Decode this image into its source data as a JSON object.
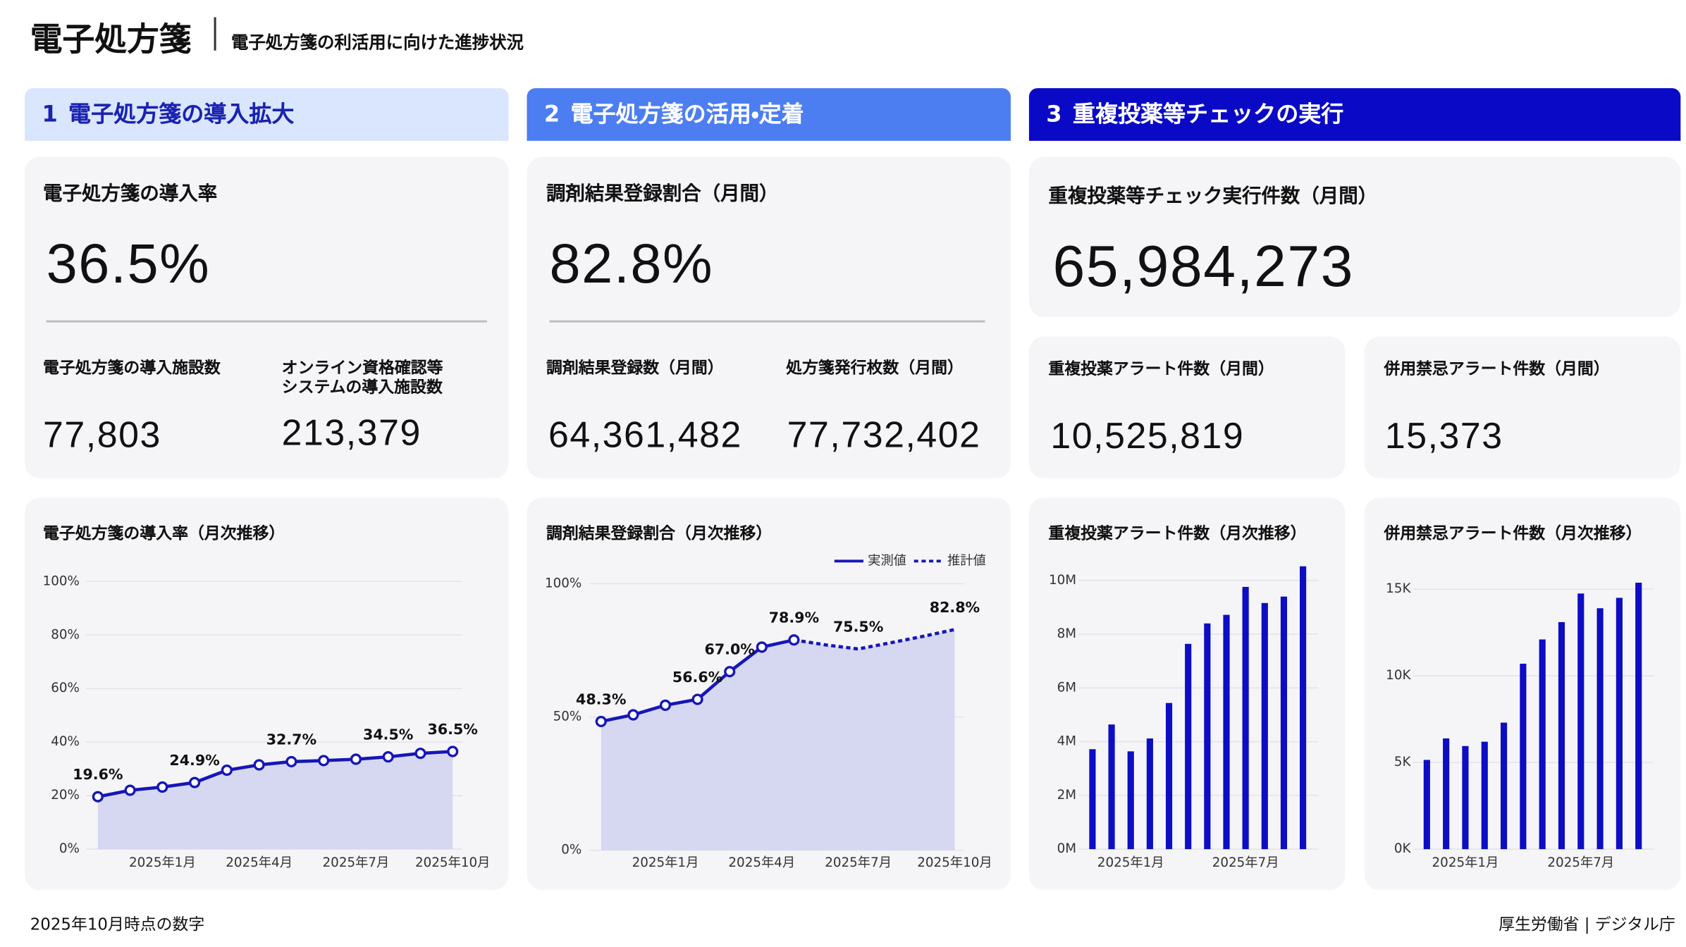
{
  "header": {
    "title": "電子処方箋",
    "subtitle": "電子処方箋の利活用に向けた進捗状況"
  },
  "sections": [
    {
      "number": "1",
      "title": "電子処方箋の導入拡大"
    },
    {
      "number": "2",
      "title": "電子処方箋の活用・定着"
    },
    {
      "number": "3",
      "title": "重複投薬等チェックの実行"
    }
  ],
  "kpis": [
    {
      "title": "電子処方箋の導入率",
      "value": "36.5%",
      "items": [
        {
          "label": "電子処方箋の導入施設数",
          "value": "77,803"
        },
        {
          "label": "オンライン資格確認等\nシステムの導入施設数",
          "value": "213,379"
        }
      ]
    },
    {
      "title": "調剤結果登録割合（月間）",
      "value": "82.8%",
      "items": [
        {
          "label": "調剤結果登録数（月間）",
          "value": "64,361,482"
        },
        {
          "label": "処方箋発行枚数（月間）",
          "value": "77,732,402"
        }
      ]
    },
    {
      "title": "重複投薬等チェック実行件数（月間）",
      "value": "65,984,273",
      "items": [
        {
          "label": "重複投薬アラート件数（月間）",
          "value": "10,525,819"
        },
        {
          "label": "併用禁忌アラート件数（月間）",
          "value": "15,373"
        }
      ]
    }
  ],
  "chart_data": [
    {
      "type": "line",
      "title": "電子処方箋の導入率（月次推移）",
      "categories": [
        null,
        null,
        "2025年1月",
        null,
        null,
        "2025年4月",
        null,
        null,
        "2025年7月",
        null,
        null,
        "2025年10月"
      ],
      "values": [
        19.6,
        22.0,
        23.2,
        24.9,
        29.5,
        31.5,
        32.7,
        33.1,
        33.6,
        34.5,
        35.8,
        36.5
      ],
      "value_labels": [
        "19.6%",
        null,
        null,
        "24.9%",
        null,
        null,
        "32.7%",
        null,
        null,
        "34.5%",
        null,
        "36.5%"
      ],
      "color": "#1616b8",
      "area_color": "#d3d5f1",
      "markers": true,
      "ylim": [
        0,
        100
      ],
      "yticks": [
        {
          "value": 0,
          "label": "0%"
        },
        {
          "value": 20,
          "label": "20%"
        },
        {
          "value": 40,
          "label": "40%"
        },
        {
          "value": 60,
          "label": "60%"
        },
        {
          "value": 80,
          "label": "80%"
        },
        {
          "value": 100,
          "label": "100%"
        }
      ],
      "grid": true
    },
    {
      "type": "line",
      "title": "調剤結果登録割合（月次推移）",
      "categories": [
        null,
        null,
        "2025年1月",
        null,
        null,
        "2025年4月",
        null,
        null,
        "2025年7月",
        null,
        null,
        "2025年10月"
      ],
      "series": [
        {
          "name": "実測値",
          "color": "#1616b8",
          "line_style": "solid",
          "markers": true,
          "values": [
            48.3,
            50.8,
            54.4,
            56.6,
            67.0,
            76.2,
            78.9,
            null,
            null,
            null,
            null,
            null
          ],
          "value_labels": [
            "48.3%",
            null,
            null,
            "56.6%",
            "67.0%",
            null,
            "78.9%",
            null,
            null,
            null,
            null,
            null
          ]
        },
        {
          "name": "推計値",
          "color": "#1616b8",
          "line_style": "dotted",
          "markers": false,
          "values": [
            null,
            null,
            null,
            null,
            null,
            null,
            78.9,
            77.0,
            75.5,
            77.8,
            80.2,
            82.8
          ],
          "value_labels": [
            null,
            null,
            null,
            null,
            null,
            null,
            null,
            null,
            "75.5%",
            null,
            null,
            "82.8%"
          ]
        }
      ],
      "area_color": "#d3d5f1",
      "ylim": [
        0,
        100
      ],
      "yticks": [
        {
          "value": 0,
          "label": "0%"
        },
        {
          "value": 50,
          "label": "50%"
        },
        {
          "value": 100,
          "label": "100%"
        }
      ],
      "grid": true,
      "legend": "top-right"
    },
    {
      "type": "bar",
      "title": "重複投薬アラート件数（月次推移）",
      "categories": [
        null,
        null,
        "2025年1月",
        null,
        null,
        null,
        null,
        null,
        "2025年7月",
        null,
        null,
        null
      ],
      "values": [
        3720000,
        4640000,
        3640000,
        4120000,
        5440000,
        7640000,
        8400000,
        8720000,
        9760000,
        9160000,
        9400000,
        10525819
      ],
      "color": "#0d0dc4",
      "ylim": [
        0,
        10800000
      ],
      "yticks": [
        {
          "value": 0,
          "label": "0M"
        },
        {
          "value": 2000000,
          "label": "2M"
        },
        {
          "value": 4000000,
          "label": "4M"
        },
        {
          "value": 6000000,
          "label": "6M"
        },
        {
          "value": 8000000,
          "label": "8M"
        },
        {
          "value": 10000000,
          "label": "10M"
        }
      ],
      "grid": true
    },
    {
      "type": "bar",
      "title": "併用禁忌アラート件数（月次推移）",
      "categories": [
        null,
        null,
        "2025年1月",
        null,
        null,
        null,
        null,
        null,
        "2025年7月",
        null,
        null,
        null
      ],
      "values": [
        5150,
        6390,
        5950,
        6200,
        7300,
        10700,
        12100,
        13100,
        14750,
        13900,
        14500,
        15373
      ],
      "color": "#0d0dc4",
      "ylim": [
        0,
        16000
      ],
      "yticks": [
        {
          "value": 0,
          "label": "0K"
        },
        {
          "value": 5000,
          "label": "5K"
        },
        {
          "value": 10000,
          "label": "10K"
        },
        {
          "value": 15000,
          "label": "15K"
        }
      ],
      "grid": true
    }
  ],
  "footer": {
    "note": "2025年10月時点の数字",
    "credit": "厚生労働省 | デジタル庁"
  }
}
